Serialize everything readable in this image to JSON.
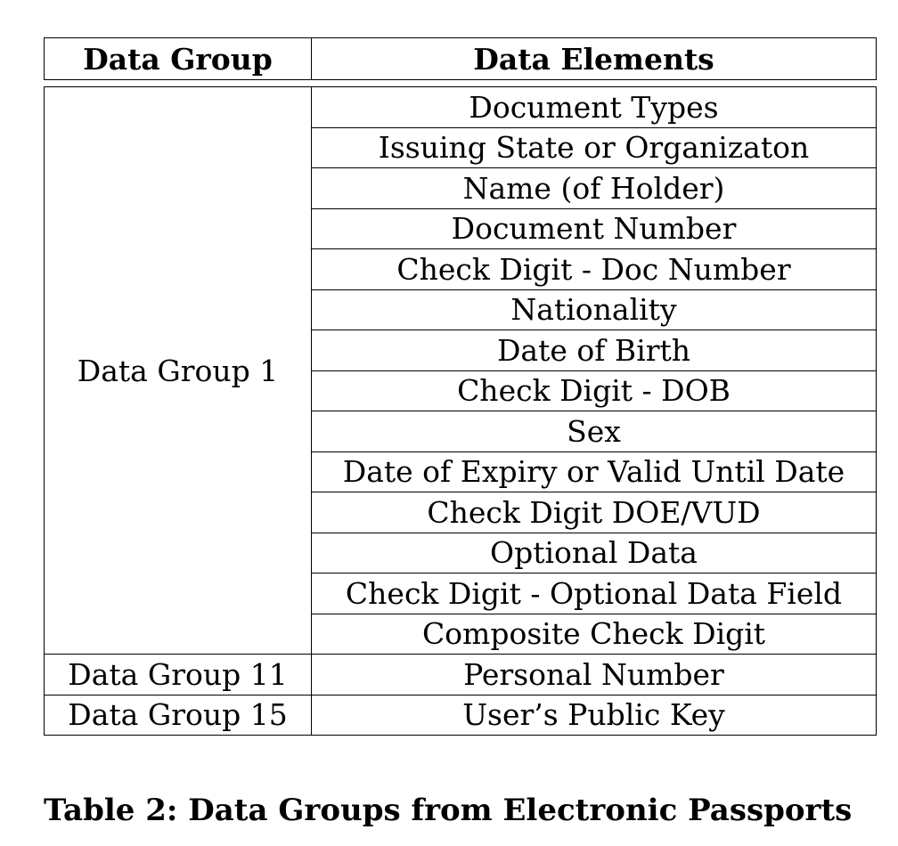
{
  "table": {
    "headers": [
      "Data Group",
      "Data Elements"
    ],
    "groups": [
      {
        "name": "Data Group 1",
        "elements": [
          "Document Types",
          "Issuing State or Organizaton",
          "Name (of Holder)",
          "Document Number",
          "Check Digit - Doc Number",
          "Nationality",
          "Date of Birth",
          "Check Digit - DOB",
          "Sex",
          "Date of Expiry or Valid Until Date",
          "Check Digit DOE/VUD",
          "Optional Data",
          "Check Digit - Optional Data Field",
          "Composite Check Digit"
        ]
      },
      {
        "name": "Data Group 11",
        "elements": [
          "Personal Number"
        ]
      },
      {
        "name": "Data Group 15",
        "elements": [
          "User’s Public Key"
        ]
      }
    ]
  },
  "caption": "Table 2: Data Groups from Electronic Passports"
}
